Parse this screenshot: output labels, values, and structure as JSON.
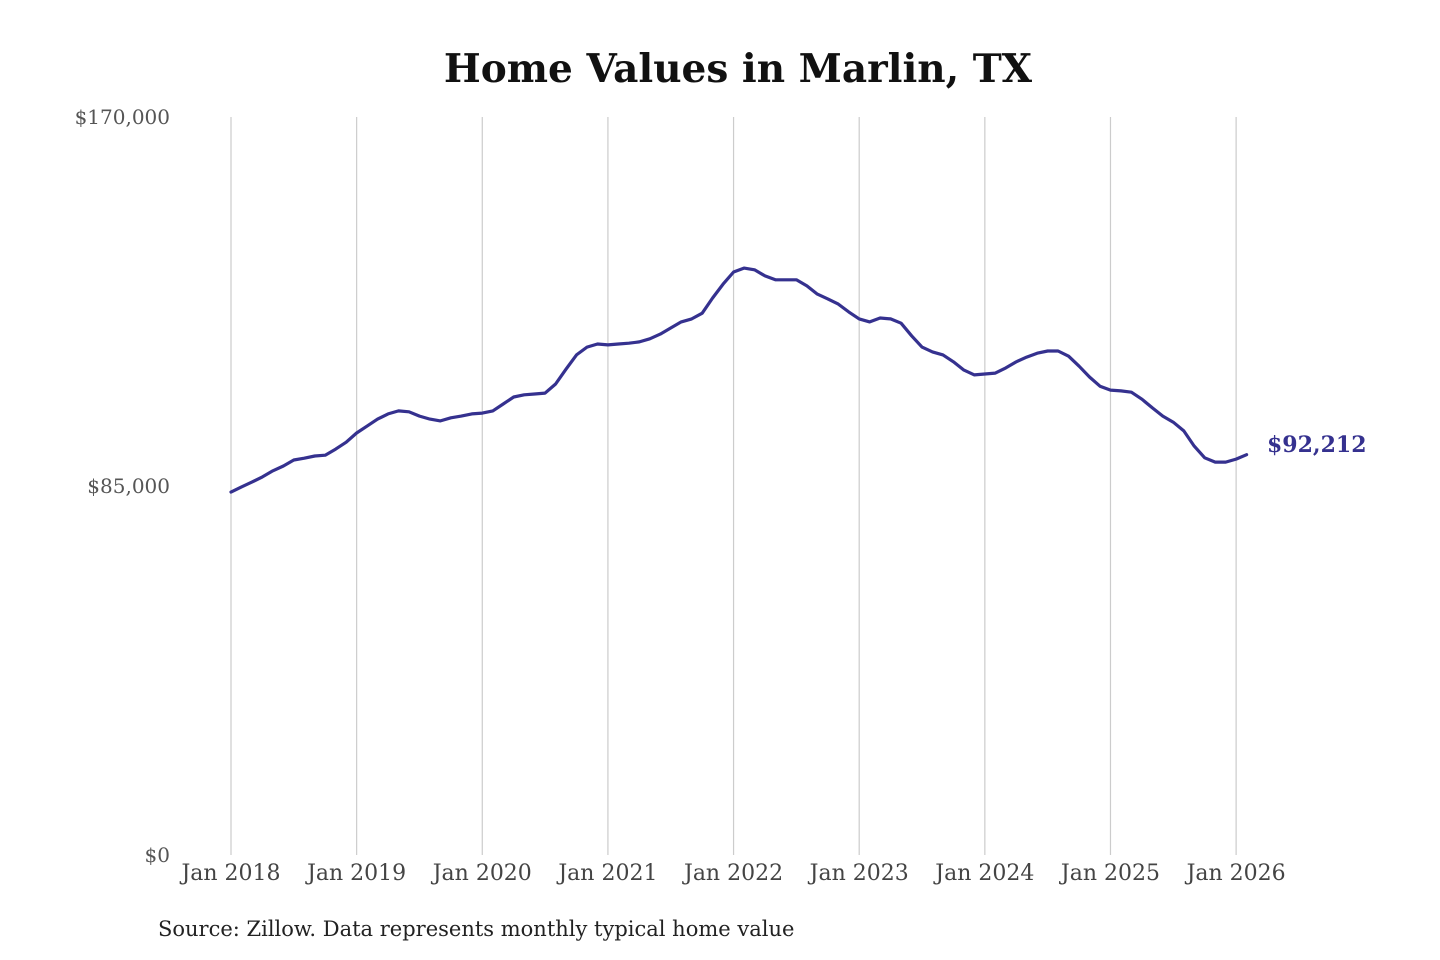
{
  "chart_data": {
    "type": "line",
    "title": "Home Values in Marlin, TX",
    "xlabel": "",
    "ylabel": "",
    "ylim": [
      0,
      170000
    ],
    "y_ticks": [
      {
        "value": 170000,
        "label": "$170,000"
      },
      {
        "value": 85000,
        "label": "$85,000"
      },
      {
        "value": 0,
        "label": "$0"
      }
    ],
    "x_ticks": [
      "Jan 2018",
      "Jan 2019",
      "Jan 2020",
      "Jan 2021",
      "Jan 2022",
      "Jan 2023",
      "Jan 2024",
      "Jan 2025",
      "Jan 2026"
    ],
    "x_start": "2018-01",
    "x_frequency": "monthly",
    "grid": "vertical lines at each January",
    "legend": "none",
    "line_color": "#35318f",
    "gridline_color": "#cccccc",
    "end_label": "$92,212",
    "series": [
      {
        "values": [
          83600,
          84800,
          85900,
          87100,
          88500,
          89600,
          91000,
          91400,
          91900,
          92100,
          93500,
          95100,
          97200,
          98800,
          100400,
          101600,
          102300,
          102100,
          101100,
          100400,
          100000,
          100700,
          101100,
          101600,
          101800,
          102300,
          103900,
          105500,
          106000,
          106200,
          106400,
          108500,
          111900,
          115200,
          117000,
          117700,
          117500,
          117700,
          117900,
          118200,
          118900,
          120000,
          121400,
          122800,
          123500,
          124800,
          128300,
          131500,
          134300,
          135200,
          134800,
          133400,
          132500,
          132500,
          132500,
          131100,
          129200,
          128100,
          126900,
          125100,
          123500,
          122800,
          123700,
          123500,
          122500,
          119600,
          117000,
          115900,
          115200,
          113600,
          111700,
          110600,
          110800,
          111000,
          112200,
          113600,
          114700,
          115600,
          116100,
          116100,
          114900,
          112600,
          110100,
          108000,
          107100,
          106900,
          106600,
          105000,
          103000,
          101100,
          99700,
          97700,
          94200,
          91500,
          90500,
          90500,
          91200,
          92212
        ]
      }
    ]
  },
  "source": "Source: Zillow. Data represents monthly typical home value"
}
